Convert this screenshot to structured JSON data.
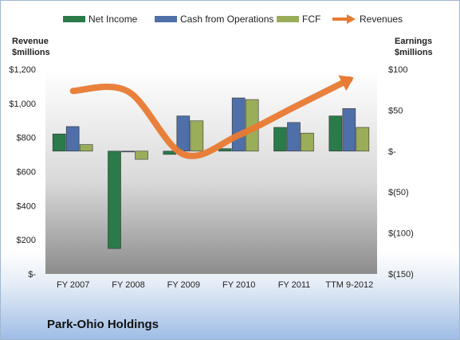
{
  "chart_data": {
    "type": "bar",
    "categories": [
      "FY 2007",
      "FY 2008",
      "FY 2009",
      "FY 2010",
      "FY 2011",
      "TTM 9-2012"
    ],
    "series": [
      {
        "name": "Net Income",
        "axis": "right",
        "kind": "bar",
        "color": "#2a7a4a",
        "values": [
          21,
          -119,
          -4,
          3,
          29,
          43
        ]
      },
      {
        "name": "Cash from Operations",
        "axis": "right",
        "kind": "bar",
        "color": "#4f6fa8",
        "values": [
          30,
          -1,
          43,
          65,
          35,
          52
        ]
      },
      {
        "name": "FCF",
        "axis": "right",
        "kind": "bar",
        "color": "#9aae5a",
        "values": [
          8,
          -10,
          37,
          63,
          22,
          29
        ]
      },
      {
        "name": "Revenues",
        "axis": "left",
        "kind": "line",
        "color": "#e87a33",
        "values": [
          1073,
          1069,
          701,
          814,
          978,
          1140
        ]
      }
    ],
    "left_axis": {
      "title_line1": "Revenue",
      "title_line2": "$millions",
      "ylim": [
        0,
        1200
      ],
      "ticks": [
        1200,
        1000,
        800,
        600,
        400,
        200,
        0
      ],
      "tick_labels": [
        "$1,200",
        "$1,000",
        "$800",
        "$600",
        "$400",
        "$200",
        "$-"
      ]
    },
    "right_axis": {
      "title_line1": "Earnings",
      "title_line2": "$millions",
      "ylim": [
        -150,
        100
      ],
      "ticks": [
        100,
        50,
        0,
        -50,
        -100,
        -150
      ],
      "tick_labels": [
        "$100",
        "$50",
        "$-",
        "$(50)",
        "$(100)",
        "$(150)"
      ]
    },
    "legend_position": "top",
    "grid": false,
    "company": "Park-Ohio Holdings"
  }
}
